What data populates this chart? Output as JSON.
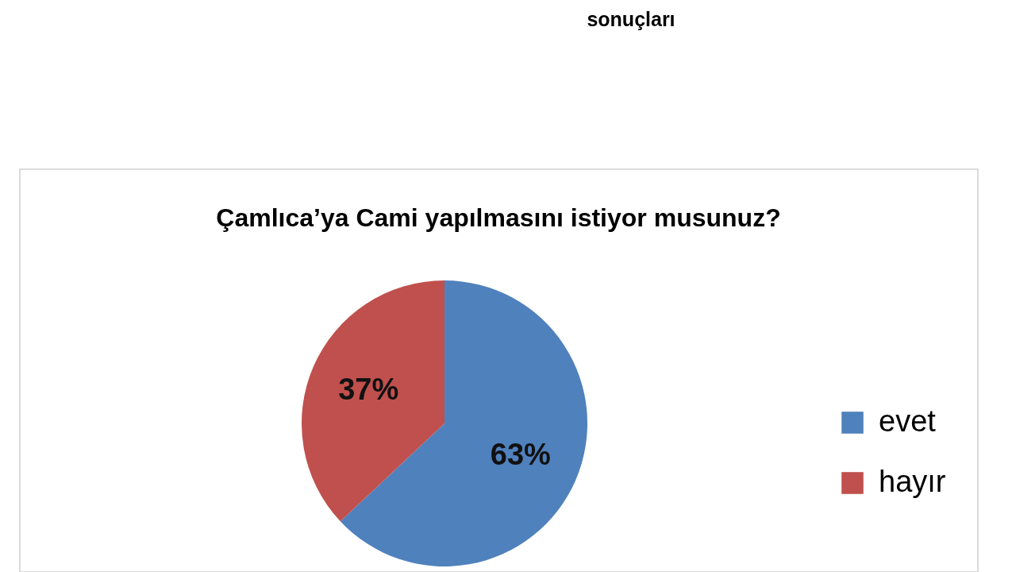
{
  "chart_data": {
    "type": "pie",
    "title": "Çamlıca’ya Cami yapılmasını istiyor musunuz?",
    "annotations": [
      "sonuçları"
    ],
    "categories": [
      "evet",
      "hayır"
    ],
    "values": [
      63,
      37
    ],
    "colors": [
      "#4f81bd",
      "#c0504d"
    ],
    "value_labels": [
      "63%",
      "37%"
    ],
    "legend": "right"
  }
}
